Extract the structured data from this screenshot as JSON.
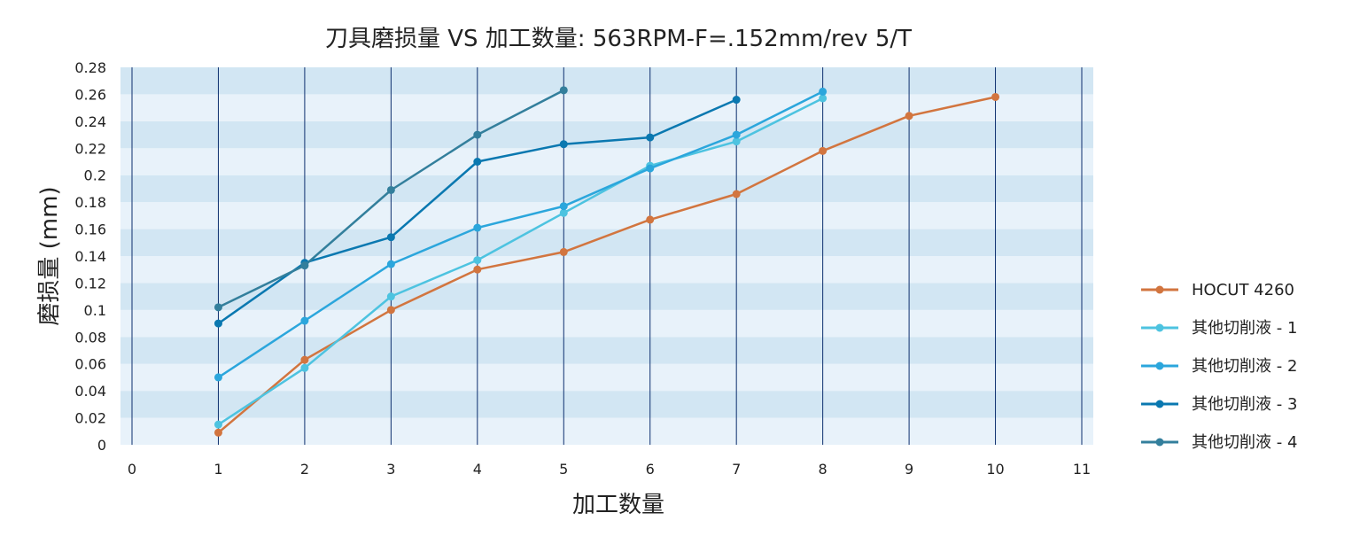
{
  "chart_data": {
    "type": "line",
    "title": "刀具磨损量 VS 加工数量: 563RPM-F=.152mm/rev  5/T",
    "xlabel": "加工数量",
    "ylabel": "磨损量 (mm)",
    "xlim": [
      0,
      11
    ],
    "ylim": [
      0,
      0.28
    ],
    "x_ticks": [
      "0",
      "1",
      "2",
      "3",
      "4",
      "5",
      "6",
      "7",
      "8",
      "9",
      "10",
      "11"
    ],
    "y_ticks": [
      "0",
      "0.02",
      "0.04",
      "0.06",
      "0.08",
      "0.1",
      "0.12",
      "0.14",
      "0.16",
      "0.18",
      "0.2",
      "0.22",
      "0.24",
      "0.26",
      "0.28"
    ],
    "grid": "vertical lines with horizontal bands",
    "legend_position": "right",
    "series": [
      {
        "name": "HOCUT 4260",
        "color": "#d2753f",
        "points": [
          [
            1,
            0.009
          ],
          [
            2,
            0.063
          ],
          [
            3,
            0.1
          ],
          [
            4,
            0.13
          ],
          [
            5,
            0.143
          ],
          [
            6,
            0.167
          ],
          [
            7,
            0.186
          ],
          [
            8,
            0.218
          ],
          [
            9,
            0.244
          ],
          [
            10,
            0.258
          ]
        ]
      },
      {
        "name": "其他切削液 - 1",
        "color": "#4dc3e0",
        "points": [
          [
            1,
            0.015
          ],
          [
            2,
            0.057
          ],
          [
            3,
            0.11
          ],
          [
            4,
            0.137
          ],
          [
            5,
            0.172
          ],
          [
            6,
            0.207
          ],
          [
            7,
            0.225
          ],
          [
            8,
            0.257
          ]
        ]
      },
      {
        "name": "其他切削液 - 2",
        "color": "#2ba6dc",
        "points": [
          [
            1,
            0.05
          ],
          [
            2,
            0.092
          ],
          [
            3,
            0.134
          ],
          [
            4,
            0.161
          ],
          [
            5,
            0.177
          ],
          [
            6,
            0.205
          ],
          [
            7,
            0.23
          ],
          [
            8,
            0.262
          ]
        ]
      },
      {
        "name": "其他切削液 - 3",
        "color": "#0a78b0",
        "points": [
          [
            1,
            0.09
          ],
          [
            2,
            0.135
          ],
          [
            3,
            0.154
          ],
          [
            4,
            0.21
          ],
          [
            5,
            0.223
          ],
          [
            6,
            0.228
          ],
          [
            7,
            0.256
          ]
        ]
      },
      {
        "name": "其他切削液 - 4",
        "color": "#337f9c",
        "points": [
          [
            1,
            0.102
          ],
          [
            2,
            0.133
          ],
          [
            3,
            0.189
          ],
          [
            4,
            0.23
          ],
          [
            5,
            0.263
          ]
        ]
      }
    ]
  }
}
